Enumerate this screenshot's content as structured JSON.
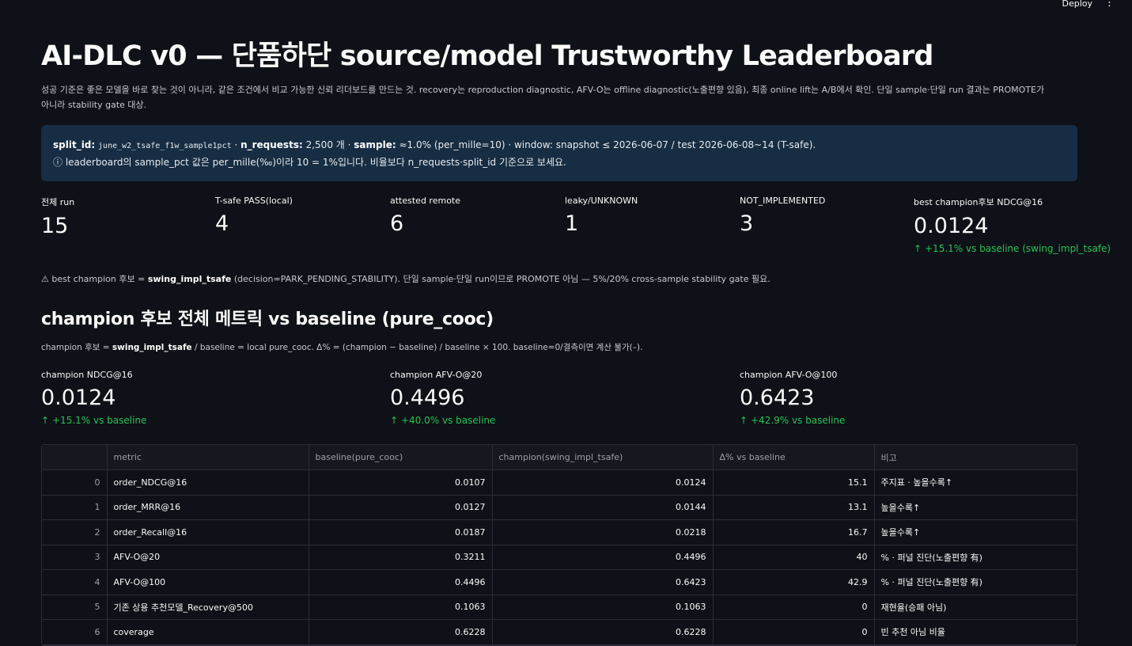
{
  "topbar": {
    "deploy_label": "Deploy",
    "menu_icon": "kebab-menu-icon"
  },
  "title": "AI-DLC v0 — 단품하단 source/model Trustworthy Leaderboard",
  "intro": "성공 기준은 좋은 모델을 바로 찾는 것이 아니라, 같은 조건에서 비교 가능한 신뢰 리더보드를 만드는 것.   recovery는 reproduction diagnostic, AFV-O는 offline diagnostic(노출편향 있음), 최종 online lift는 A/B에서 확인. 단일 sample·단일 run 결과는 PROMOTE가 아니라 stability gate 대상.",
  "info": {
    "split_id_label": "split_id:",
    "split_id_value": "june_w2_tsafe_f1w_sample1pct",
    "n_requests_label": "n_requests:",
    "n_requests_value": "2,500 개 ·",
    "sample_label": "sample:",
    "sample_value": "≈1.0% (per_mille=10) · window: snapshot ≤ 2026-06-07 / test 2026-06-08~14 (T-safe).",
    "line2": "ⓘ leaderboard의 sample_pct 값은 per_mille(‰)이라 10 = 1%입니다. 비율보다 n_requests·split_id 기준으로 보세요."
  },
  "metrics": [
    {
      "label": "전체 run",
      "value": "15"
    },
    {
      "label": "T-safe PASS(local)",
      "value": "4"
    },
    {
      "label": "attested remote",
      "value": "6"
    },
    {
      "label": "leaky/UNKNOWN",
      "value": "1"
    },
    {
      "label": "NOT_IMPLEMENTED",
      "value": "3"
    },
    {
      "label": "best champion후보 NDCG@16",
      "value": "0.0124",
      "delta": "+15.1% vs baseline (swing_impl_tsafe)"
    }
  ],
  "warning": {
    "prefix": "⚠ best champion 후보 = ",
    "model": "swing_impl_tsafe",
    "rest": " (decision=PARK_PENDING_STABILITY). 단일 sample·단일 run이므로 PROMOTE 아님 — 5%/20% cross-sample stability gate 필요."
  },
  "section": {
    "title": "champion 후보 전체 메트릭 vs baseline (pure_cooc)",
    "sub_prefix": "champion 후보 = ",
    "sub_model": "swing_impl_tsafe",
    "sub_rest": " / baseline = local pure_cooc. Δ% = (champion − baseline) / baseline × 100. baseline=0/결측이면 계산 불가(–)."
  },
  "champion_metrics": [
    {
      "label": "champion NDCG@16",
      "value": "0.0124",
      "delta": "+15.1% vs baseline"
    },
    {
      "label": "champion AFV-O@20",
      "value": "0.4496",
      "delta": "+40.0% vs baseline"
    },
    {
      "label": "champion AFV-O@100",
      "value": "0.6423",
      "delta": "+42.9% vs baseline"
    }
  ],
  "colors": {
    "background": "#0e1117",
    "info_box": "#172d43",
    "delta_green": "#21c354"
  },
  "table": {
    "headers": [
      "",
      "metric",
      "baseline(pure_cooc)",
      "champion(swing_impl_tsafe)",
      "Δ% vs baseline",
      "비고"
    ],
    "rows": [
      [
        "0",
        "order_NDCG@16",
        "0.0107",
        "0.0124",
        "15.1",
        "주지표 · 높을수록↑"
      ],
      [
        "1",
        "order_MRR@16",
        "0.0127",
        "0.0144",
        "13.1",
        "높을수록↑"
      ],
      [
        "2",
        "order_Recall@16",
        "0.0187",
        "0.0218",
        "16.7",
        "높을수록↑"
      ],
      [
        "3",
        "AFV-O@20",
        "0.3211",
        "0.4496",
        "40",
        "% · 퍼널 진단(노출편향 有)"
      ],
      [
        "4",
        "AFV-O@100",
        "0.4496",
        "0.6423",
        "42.9",
        "% · 퍼널 진단(노출편향 有)"
      ],
      [
        "5",
        "기존 상용 추천모델_Recovery@500",
        "0.1063",
        "0.1063",
        "0",
        "재현율(승패 아님)"
      ],
      [
        "6",
        "coverage",
        "0.6228",
        "0.6228",
        "0",
        "빈 추천 아님 비율"
      ]
    ]
  }
}
